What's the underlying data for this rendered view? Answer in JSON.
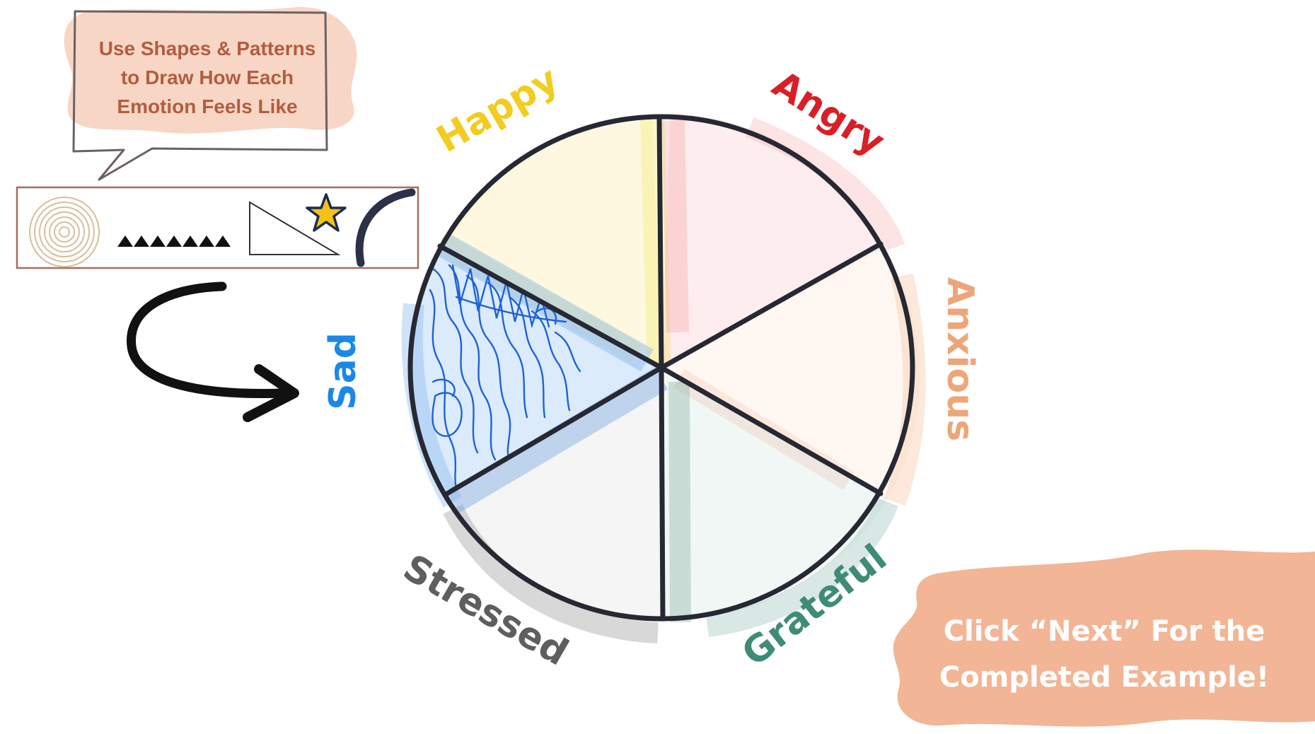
{
  "instruction": {
    "line1": "Use Shapes & Patterns",
    "line2": "to Draw How Each",
    "line3": "Emotion Feels Like"
  },
  "pattern_examples": [
    "concentric-circles-icon",
    "triangle-row-icon",
    "right-triangle-icon",
    "star-icon",
    "arc-icon"
  ],
  "emotions": {
    "happy": "Happy",
    "angry": "Angry",
    "anxious": "Anxious",
    "grateful": "Grateful",
    "stressed": "Stressed",
    "sad": "Sad"
  },
  "colors": {
    "happy": "#f2cc1f",
    "angry": "#d91f26",
    "anxious": "#eda67a",
    "grateful": "#3e8c76",
    "stressed": "#5e5e5e",
    "sad": "#1b88e8",
    "wheel_outline": "#262833",
    "blotch": "#f2b596",
    "bubble_text": "#b25d3f"
  },
  "cta": {
    "line1": "Click “Next” For the",
    "line2": "Completed Example!"
  }
}
